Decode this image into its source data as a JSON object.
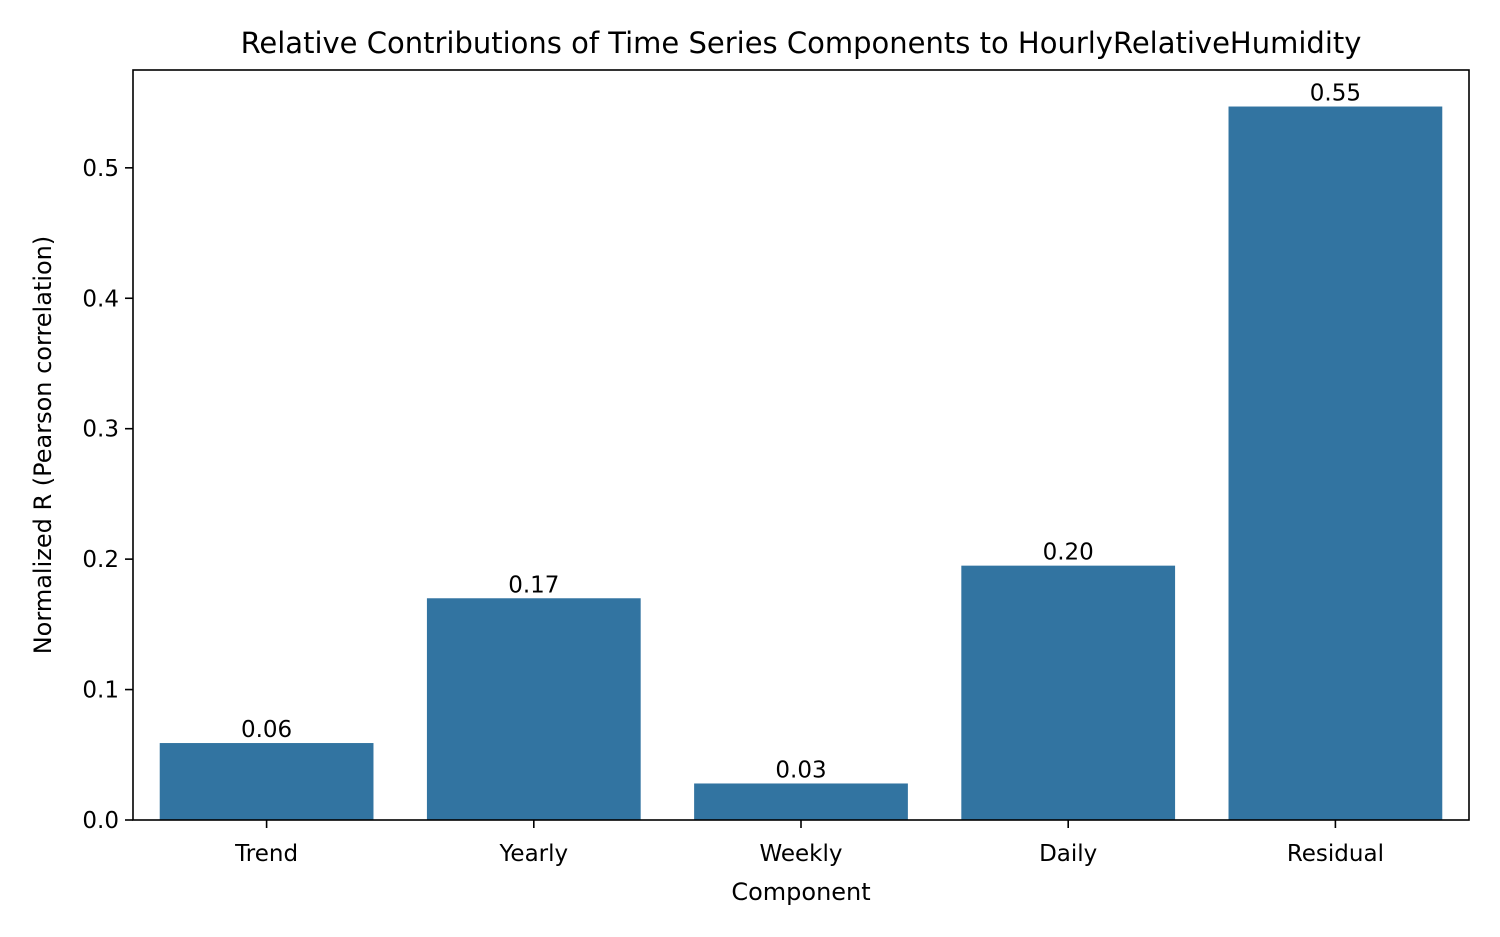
{
  "chart_data": {
    "type": "bar",
    "title": "Relative Contributions of Time Series Components to HourlyRelativeHumidity",
    "xlabel": "Component",
    "ylabel": "Normalized R (Pearson correlation)",
    "categories": [
      "Trend",
      "Yearly",
      "Weekly",
      "Daily",
      "Residual"
    ],
    "values": [
      0.059,
      0.17,
      0.028,
      0.195,
      0.547
    ],
    "data_labels": [
      "0.06",
      "0.17",
      "0.03",
      "0.20",
      "0.55"
    ],
    "ylim": [
      0,
      0.575
    ],
    "yticks": [
      0.0,
      0.1,
      0.2,
      0.3,
      0.4,
      0.5
    ],
    "ytick_labels": [
      "0.0",
      "0.1",
      "0.2",
      "0.3",
      "0.4",
      "0.5"
    ],
    "grid": false,
    "bar_color": "#3274a1"
  }
}
